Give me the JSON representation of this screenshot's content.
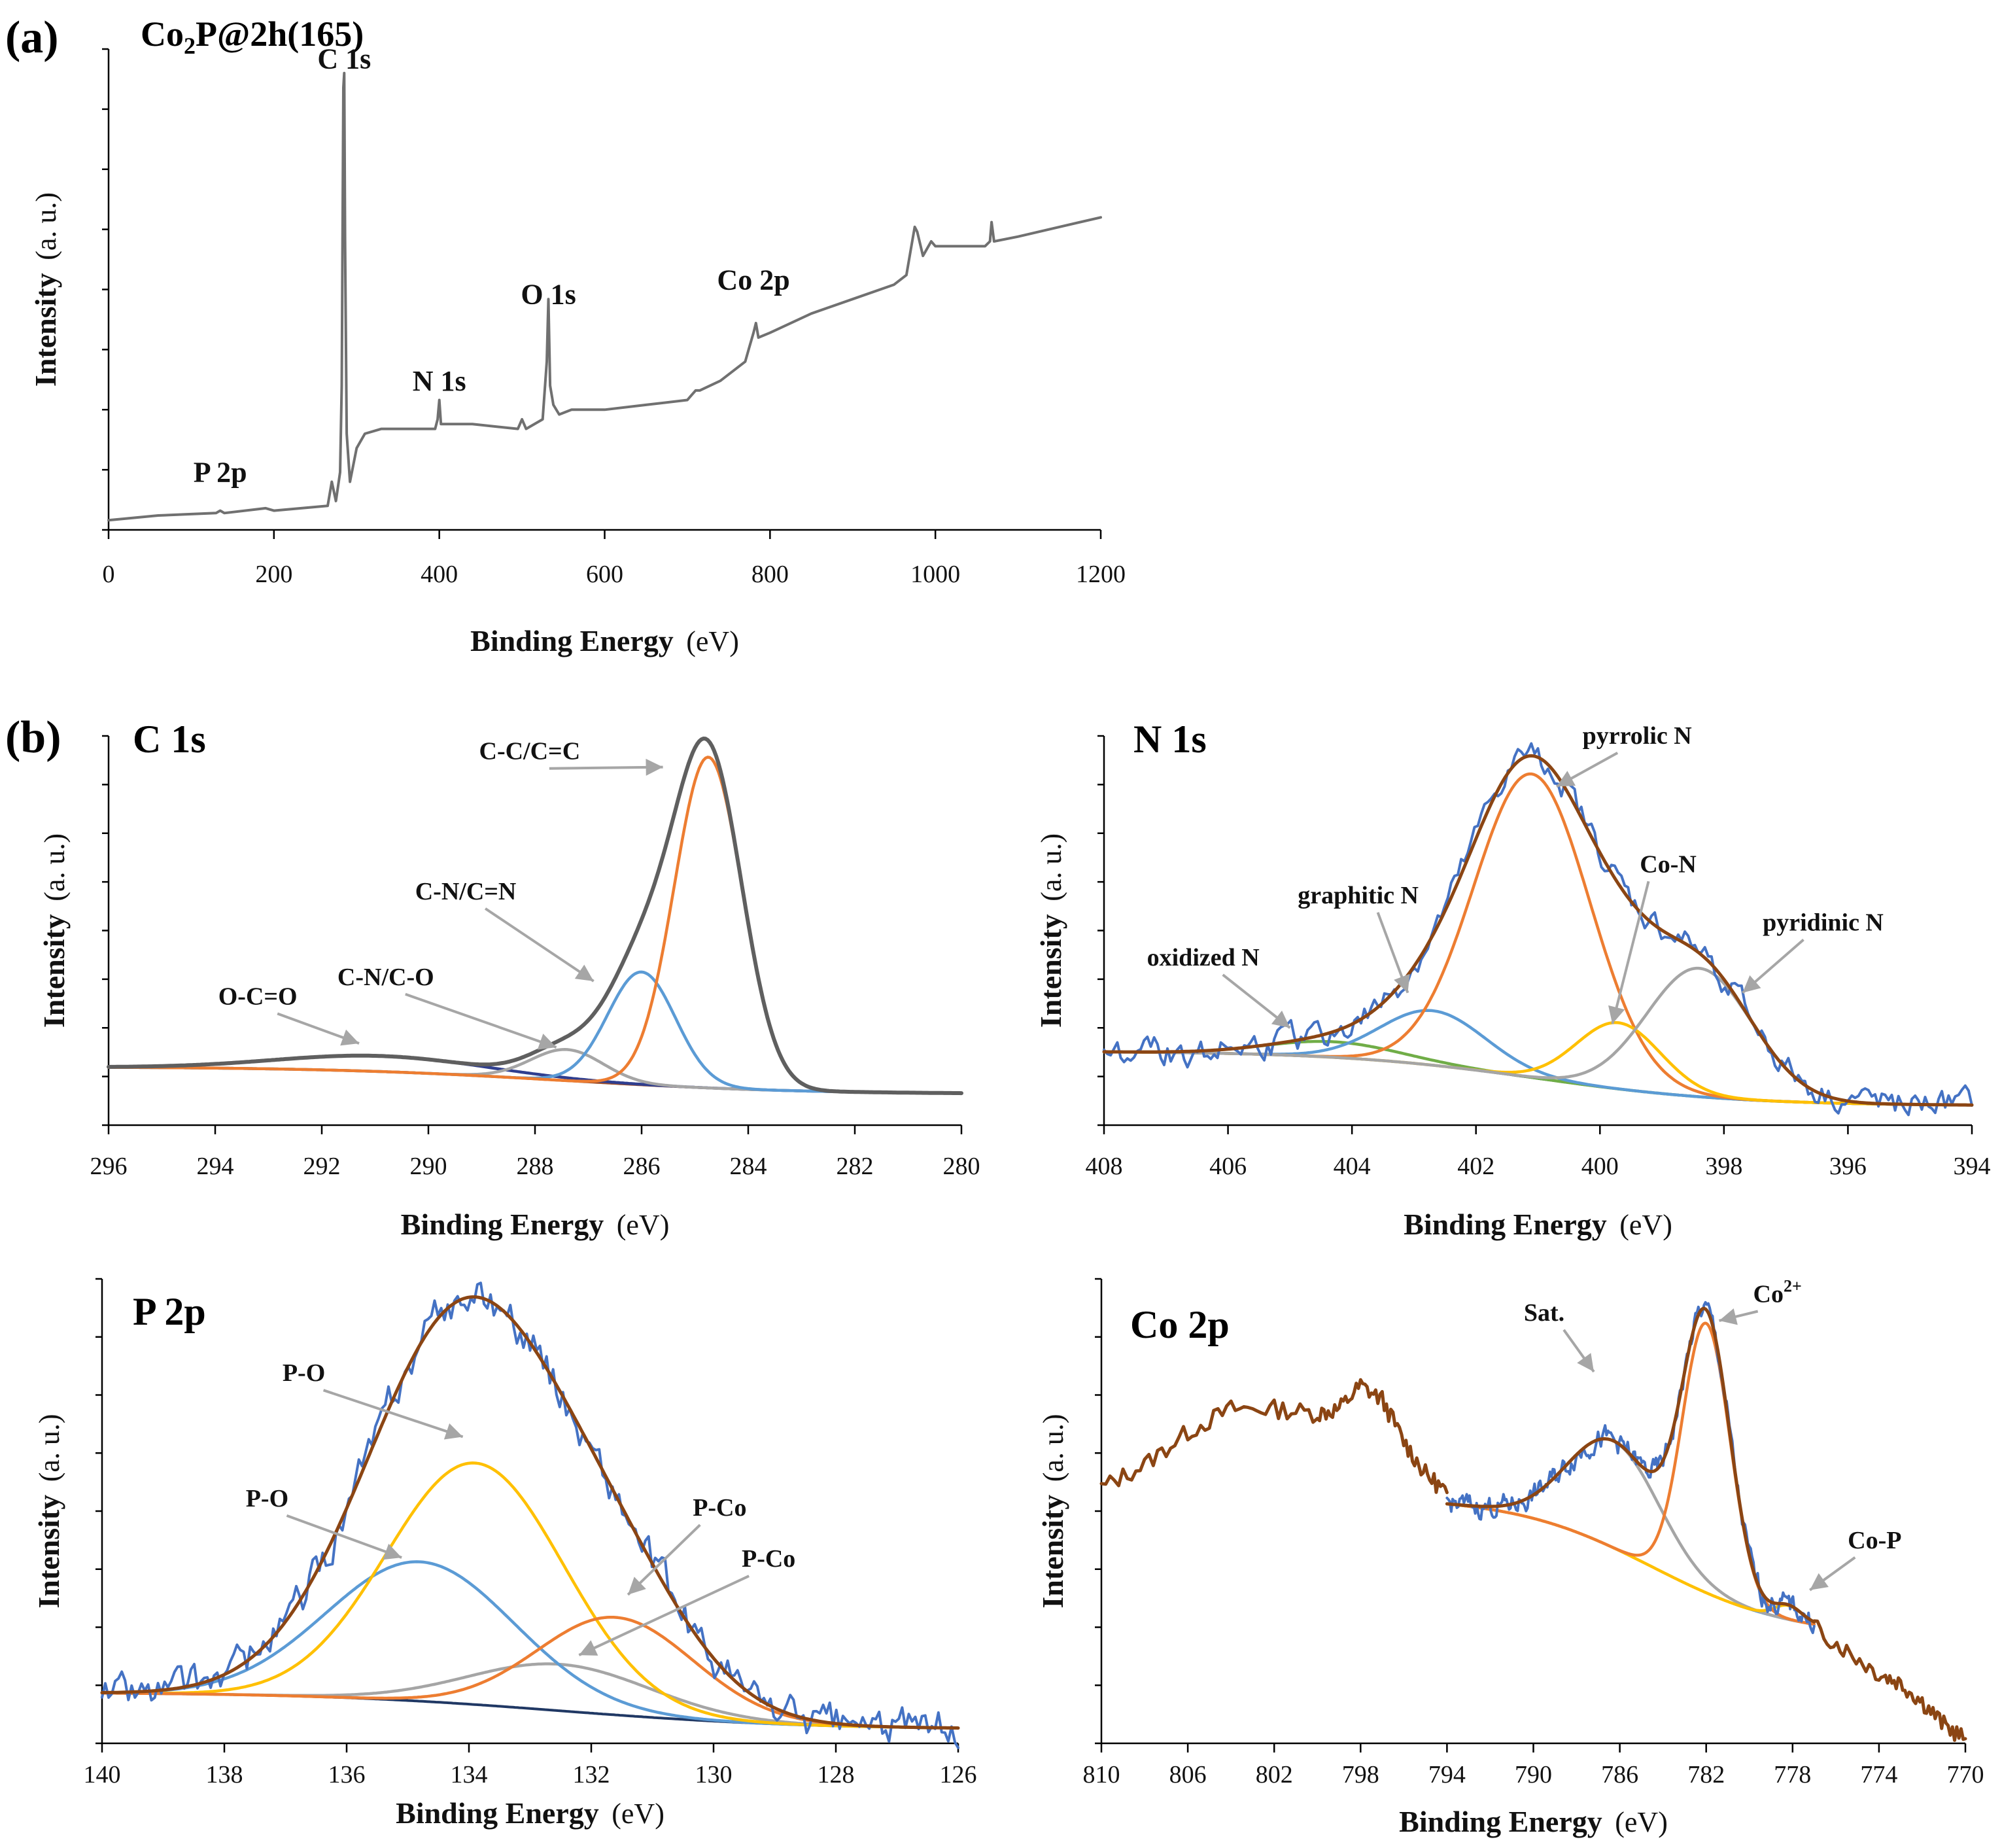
{
  "figure": {
    "panel_a_label": "(a)",
    "panel_b_label": "(b)",
    "colors": {
      "survey": "#707070",
      "raw": "#4472c4",
      "envelope_c1s": "#5f5f5f",
      "envelope": "#8b4513",
      "background": "#203864",
      "background_c1s": "#a0522d",
      "orange": "#ed7d31",
      "blue": "#5b9bd5",
      "yellow": "#ffc000",
      "gray": "#a5a5a5",
      "green": "#70ad47",
      "darkblue": "#2f3e8f",
      "arrow": "#a6a6a6"
    }
  },
  "chart_data": [
    {
      "id": "survey",
      "type": "line",
      "title_main": "Co",
      "title_sub": "2",
      "title_rest": "P@2h(165)",
      "xlabel_bold": "Binding Energy",
      "xlabel_unit": "(eV)",
      "ylabel_bold": "Intensity",
      "ylabel_unit": "(a. u.)",
      "xlim": [
        0,
        1200
      ],
      "ylim": [
        0,
        100
      ],
      "xticks": [
        0,
        200,
        400,
        600,
        800,
        1000,
        1200
      ],
      "x_reversed": false,
      "peak_labels": [
        {
          "text": "C 1s",
          "x": 285,
          "y": 96
        },
        {
          "text": "N 1s",
          "x": 400,
          "y": 29
        },
        {
          "text": "O 1s",
          "x": 532,
          "y": 47
        },
        {
          "text": "Co 2p",
          "x": 780,
          "y": 50
        },
        {
          "text": "P 2p",
          "x": 135,
          "y": 10
        }
      ],
      "series": [
        {
          "name": "survey",
          "color_key": "survey",
          "points": [
            [
              0,
              2
            ],
            [
              60,
              3
            ],
            [
              130,
              3.5
            ],
            [
              135,
              4
            ],
            [
              140,
              3.5
            ],
            [
              190,
              4.5
            ],
            [
              200,
              4
            ],
            [
              265,
              5
            ],
            [
              270,
              10
            ],
            [
              275,
              6
            ],
            [
              280,
              12
            ],
            [
              282,
              30
            ],
            [
              284,
              92
            ],
            [
              285,
              95
            ],
            [
              286,
              60
            ],
            [
              288,
              20
            ],
            [
              292,
              10
            ],
            [
              300,
              17
            ],
            [
              310,
              20
            ],
            [
              330,
              21
            ],
            [
              360,
              21
            ],
            [
              395,
              21
            ],
            [
              398,
              23
            ],
            [
              400,
              27
            ],
            [
              402,
              22
            ],
            [
              440,
              22
            ],
            [
              495,
              21
            ],
            [
              500,
              23
            ],
            [
              505,
              21
            ],
            [
              525,
              23
            ],
            [
              530,
              35
            ],
            [
              532,
              48
            ],
            [
              534,
              30
            ],
            [
              538,
              26
            ],
            [
              545,
              24
            ],
            [
              560,
              25
            ],
            [
              600,
              25
            ],
            [
              650,
              26
            ],
            [
              700,
              27
            ],
            [
              705,
              28
            ],
            [
              710,
              29
            ],
            [
              715,
              29
            ],
            [
              740,
              31
            ],
            [
              770,
              35
            ],
            [
              775,
              38
            ],
            [
              780,
              41
            ],
            [
              783,
              43
            ],
            [
              786,
              40
            ],
            [
              800,
              41
            ],
            [
              850,
              45
            ],
            [
              900,
              48
            ],
            [
              950,
              51
            ],
            [
              965,
              53
            ],
            [
              970,
              58
            ],
            [
              975,
              63
            ],
            [
              978,
              62
            ],
            [
              985,
              57
            ],
            [
              995,
              60
            ],
            [
              1000,
              59
            ],
            [
              1030,
              59
            ],
            [
              1060,
              59
            ],
            [
              1066,
              60
            ],
            [
              1068,
              64
            ],
            [
              1071,
              60
            ],
            [
              1100,
              61
            ],
            [
              1150,
              63
            ],
            [
              1200,
              65
            ]
          ]
        }
      ]
    },
    {
      "id": "c1s",
      "type": "line",
      "title": "C 1s",
      "xlabel_bold": "Binding Energy",
      "xlabel_unit": "(eV)",
      "ylabel_bold": "Intensity",
      "ylabel_unit": "(a. u.)",
      "xlim": [
        296,
        280
      ],
      "ylim": [
        0,
        100
      ],
      "xticks": [
        296,
        294,
        292,
        290,
        288,
        286,
        284,
        282,
        280
      ],
      "x_reversed": true,
      "annotations": [
        {
          "text": "C-C/C=C",
          "tx": 288.1,
          "ty": 94,
          "ax": 285.6,
          "ay": 92
        },
        {
          "text": "C-N/C=N",
          "tx": 289.3,
          "ty": 58,
          "ax": 286.9,
          "ay": 37
        },
        {
          "text": "C-N/C-O",
          "tx": 290.8,
          "ty": 36,
          "ax": 287.6,
          "ay": 20
        },
        {
          "text": "O-C=O",
          "tx": 293.2,
          "ty": 31,
          "ax": 291.3,
          "ay": 21
        }
      ],
      "series": [
        {
          "name": "background",
          "color_key": "background_c1s",
          "kind": "background",
          "bg_high": 15,
          "bg_low": 8,
          "bg_center": 287.5,
          "bg_width": 2.2
        },
        {
          "name": "O-C=O",
          "color_key": "darkblue",
          "kind": "peak",
          "center": 290.9,
          "height": 4,
          "fwhm": 4.5
        },
        {
          "name": "C-N/C-O",
          "color_key": "gray",
          "kind": "peak",
          "center": 287.4,
          "height": 8,
          "fwhm": 1.6
        },
        {
          "name": "C-N/C=N",
          "color_key": "blue",
          "kind": "peak",
          "center": 286.0,
          "height": 29,
          "fwhm": 1.5
        },
        {
          "name": "C-C/C=C",
          "color_key": "orange",
          "kind": "peak",
          "center": 284.75,
          "height": 85,
          "fwhm": 1.5
        },
        {
          "name": "envelope",
          "color_key": "envelope_c1s",
          "kind": "envelope",
          "lw": 6
        }
      ]
    },
    {
      "id": "n1s",
      "type": "line",
      "title": "N 1s",
      "xlabel_bold": "Binding Energy",
      "xlabel_unit": "(eV)",
      "ylabel_bold": "Intensity",
      "ylabel_unit": "(a. u.)",
      "xlim": [
        408,
        394
      ],
      "ylim": [
        0,
        100
      ],
      "xticks": [
        408,
        406,
        404,
        402,
        400,
        398,
        396,
        394
      ],
      "x_reversed": true,
      "annotations": [
        {
          "text": "pyrrolic N",
          "tx": 399.4,
          "ty": 98,
          "ax": 400.7,
          "ay": 87
        },
        {
          "text": "Co-N",
          "tx": 398.9,
          "ty": 65,
          "ax": 399.8,
          "ay": 26
        },
        {
          "text": "pyridinic N",
          "tx": 396.4,
          "ty": 50,
          "ax": 397.7,
          "ay": 34
        },
        {
          "text": "graphitic N",
          "tx": 403.9,
          "ty": 57,
          "ax": 403.1,
          "ay": 34
        },
        {
          "text": "oxidized N",
          "tx": 406.4,
          "ty": 41,
          "ax": 405.0,
          "ay": 25
        }
      ],
      "series": [
        {
          "name": "background",
          "color_key": "background",
          "kind": "background",
          "bg_high": 19,
          "bg_low": 5,
          "bg_center": 401.0,
          "bg_width": 1.6
        },
        {
          "name": "oxidized N",
          "color_key": "green",
          "kind": "peak",
          "center": 404.3,
          "height": 4,
          "fwhm": 2.5
        },
        {
          "name": "graphitic N",
          "color_key": "blue",
          "kind": "peak",
          "center": 402.7,
          "height": 14,
          "fwhm": 2.0
        },
        {
          "name": "pyrrolic N",
          "color_key": "orange",
          "kind": "peak",
          "center": 401.1,
          "height": 78,
          "fwhm": 2.2
        },
        {
          "name": "Co-N",
          "color_key": "yellow",
          "kind": "peak",
          "center": 399.7,
          "height": 17,
          "fwhm": 1.6
        },
        {
          "name": "pyridinic N",
          "color_key": "gray",
          "kind": "peak",
          "center": 398.4,
          "height": 33,
          "fwhm": 2.0
        },
        {
          "name": "raw",
          "color_key": "raw",
          "kind": "raw",
          "noise": 3.0,
          "extend": true
        },
        {
          "name": "envelope",
          "color_key": "envelope",
          "kind": "envelope",
          "lw": 5
        }
      ]
    },
    {
      "id": "p2p",
      "type": "line",
      "title": "P 2p",
      "xlabel_bold": "Binding Energy",
      "xlabel_unit": "(eV)",
      "ylabel_bold": "Intensity",
      "ylabel_unit": "(a. u.)",
      "xlim": [
        140,
        126
      ],
      "ylim": [
        0,
        100
      ],
      "xticks": [
        140,
        138,
        136,
        134,
        132,
        130,
        128,
        126
      ],
      "x_reversed": true,
      "annotations": [
        {
          "text": "P-O",
          "tx": 136.7,
          "ty": 78,
          "ax": 134.1,
          "ay": 66
        },
        {
          "text": "P-O",
          "tx": 137.3,
          "ty": 51,
          "ax": 135.1,
          "ay": 40
        },
        {
          "text": "P-Co",
          "tx": 129.9,
          "ty": 49,
          "ax": 131.4,
          "ay": 32
        },
        {
          "text": "P-Co",
          "tx": 129.1,
          "ty": 38,
          "ax": 132.2,
          "ay": 19
        }
      ],
      "series": [
        {
          "name": "background",
          "color_key": "background",
          "kind": "background",
          "bg_high": 11,
          "bg_low": 3,
          "bg_center": 132.5,
          "bg_width": 2.0
        },
        {
          "name": "P-Co (gray)",
          "color_key": "gray",
          "kind": "peak",
          "center": 132.5,
          "height": 10,
          "fwhm": 3.5
        },
        {
          "name": "P-O (blue)",
          "color_key": "blue",
          "kind": "peak",
          "center": 134.8,
          "height": 30,
          "fwhm": 3.6
        },
        {
          "name": "P-O (yellow)",
          "color_key": "yellow",
          "kind": "peak",
          "center": 133.9,
          "height": 52,
          "fwhm": 3.4
        },
        {
          "name": "P-Co (orange)",
          "color_key": "orange",
          "kind": "peak",
          "center": 131.6,
          "height": 21,
          "fwhm": 3.0
        },
        {
          "name": "raw",
          "color_key": "raw",
          "kind": "raw",
          "noise": 3.5,
          "extend": true
        },
        {
          "name": "envelope",
          "color_key": "envelope",
          "kind": "envelope",
          "lw": 5
        }
      ]
    },
    {
      "id": "co2p",
      "type": "line",
      "title": "Co 2p",
      "xlabel_bold": "Binding Energy",
      "xlabel_unit": "(eV)",
      "ylabel_bold": "Intensity",
      "ylabel_unit": "(a. u.)",
      "xlim": [
        810,
        770
      ],
      "ylim": [
        0,
        100
      ],
      "xticks": [
        810,
        806,
        802,
        798,
        794,
        790,
        786,
        782,
        778,
        774,
        770
      ],
      "x_reversed": true,
      "annotations": [
        {
          "text": "Sat.",
          "tx": 789.5,
          "ty": 91,
          "ax": 787.2,
          "ay": 80
        },
        {
          "text": "Co",
          "sup": "2+",
          "tx": 778.7,
          "ty": 95,
          "ax": 781.4,
          "ay": 91
        },
        {
          "text": "Co-P",
          "tx": 774.2,
          "ty": 42,
          "ax": 777.2,
          "ay": 33
        }
      ],
      "series": [
        {
          "name": "background",
          "color_key": "blue",
          "kind": "background",
          "bg_high": 53,
          "bg_low": 23,
          "bg_center": 784.5,
          "bg_width": 3.2,
          "bg_from": 794,
          "bg_to": 777
        },
        {
          "name": "Sat.",
          "color_key": "gray",
          "kind": "peak",
          "center": 786.3,
          "height": 23,
          "fwhm": 5.0,
          "from": 794,
          "to": 777
        },
        {
          "name": "Co-P",
          "color_key": "yellow",
          "kind": "peak",
          "center": 778.2,
          "height": 3,
          "fwhm": 1.5,
          "from": 794,
          "to": 777
        },
        {
          "name": "Co2+",
          "color_key": "orange",
          "kind": "peak",
          "center": 782.0,
          "height": 58,
          "fwhm": 2.6,
          "from": 794,
          "to": 777
        },
        {
          "name": "raw",
          "color_key": "raw",
          "kind": "raw",
          "noise": 2.0,
          "from": 794,
          "to": 777
        },
        {
          "name": "envelope",
          "color_key": "envelope",
          "kind": "envelope",
          "lw": 5,
          "from": 794,
          "to": 777
        },
        {
          "name": "wide spectrum",
          "color_key": "envelope",
          "kind": "points",
          "lw": 5,
          "points": [
            [
              810,
              55
            ],
            [
              808,
              60
            ],
            [
              806,
              67
            ],
            [
              804,
              72
            ],
            [
              802,
              72
            ],
            [
              800,
              71
            ],
            [
              799,
              72
            ],
            [
              798,
              77
            ],
            [
              797,
              74
            ],
            [
              796,
              65
            ],
            [
              795,
              58
            ],
            [
              794,
              54
            ]
          ],
          "tail": [
            [
              777,
              25
            ],
            [
              775.5,
              20
            ],
            [
              774,
              15
            ],
            [
              773,
              13
            ],
            [
              772,
              9
            ],
            [
              771,
              4
            ],
            [
              770,
              1
            ]
          ]
        }
      ]
    }
  ]
}
